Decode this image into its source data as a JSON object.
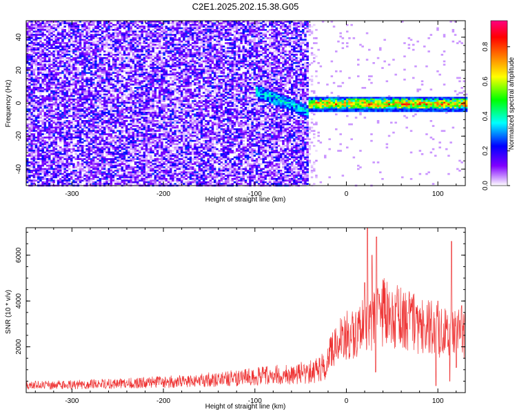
{
  "figure": {
    "title": "C2E1.2025.202.15.38.G05"
  },
  "chart_data": [
    {
      "type": "heatmap",
      "title": "C2E1.2025.202.15.38.G05",
      "xlabel": "Height of straight line (km)",
      "ylabel": "Frequency (Hz)",
      "xlim": [
        -350,
        130
      ],
      "ylim": [
        -50,
        50
      ],
      "xticks": [
        -300,
        -200,
        -100,
        0,
        100
      ],
      "xtick_labels": [
        "-300",
        "-200",
        "-100",
        "0",
        "100"
      ],
      "yticks": [
        -40,
        -20,
        0,
        20,
        40
      ],
      "ytick_labels": [
        "-40",
        "-20",
        "0",
        "20",
        "40"
      ],
      "noise_region_x": [
        -350,
        -42
      ],
      "transition_region_x": [
        -100,
        -40
      ],
      "signal_band": {
        "x_range": [
          -42,
          130
        ],
        "center_frequency": 0,
        "half_width": 3
      },
      "colorbar": {
        "label": "Normalized spectral amplitude",
        "range": [
          0,
          0.95
        ],
        "ticks": [
          0.0,
          0.2,
          0.4,
          0.6,
          0.8
        ],
        "tick_labels": [
          "0.0",
          "0.2",
          "0.4",
          "0.6",
          "0.8"
        ],
        "colors": [
          "#ffffff",
          "#8000ff",
          "#0000ff",
          "#00ffff",
          "#00ff00",
          "#ffff00",
          "#ff8000",
          "#ff0000",
          "#ff0080"
        ]
      },
      "grid": false
    },
    {
      "type": "line",
      "xlabel": "Height of straight line (km)",
      "ylabel": "SNR (10 * v/v)",
      "xlim": [
        -350,
        130
      ],
      "ylim": [
        0,
        7200
      ],
      "xticks": [
        -300,
        -200,
        -100,
        0,
        100
      ],
      "xtick_labels": [
        "-300",
        "-200",
        "-100",
        "0",
        "100"
      ],
      "yticks": [
        2000,
        4000,
        6000
      ],
      "ytick_labels": [
        "2000",
        "4000",
        "6000"
      ],
      "line_color": "#ee3333",
      "envelope": {
        "x": [
          -350,
          -300,
          -250,
          -200,
          -150,
          -100,
          -60,
          -40,
          -30,
          -20,
          -10,
          0,
          10,
          20,
          30,
          40,
          60,
          80,
          100,
          120,
          130
        ],
        "y": [
          380,
          420,
          480,
          560,
          680,
          850,
          1000,
          1100,
          1250,
          1600,
          2200,
          2600,
          2700,
          3000,
          3300,
          3600,
          3300,
          3000,
          2800,
          2600,
          2600
        ]
      },
      "spikes": [
        {
          "x": 23,
          "y": 7200
        },
        {
          "x": 28,
          "y": 6000
        },
        {
          "x": 33,
          "y": 6800
        },
        {
          "x": 20,
          "y": 4800
        },
        {
          "x": 35,
          "y": 4300
        },
        {
          "x": 100,
          "y": 4000
        },
        {
          "x": 115,
          "y": 6600
        },
        {
          "x": 126,
          "y": 3800
        }
      ],
      "dips": [
        {
          "x": 32,
          "y": 900
        },
        {
          "x": 98,
          "y": 300
        },
        {
          "x": 113,
          "y": 500
        },
        {
          "x": 120,
          "y": 1100
        }
      ],
      "grid": false
    }
  ]
}
